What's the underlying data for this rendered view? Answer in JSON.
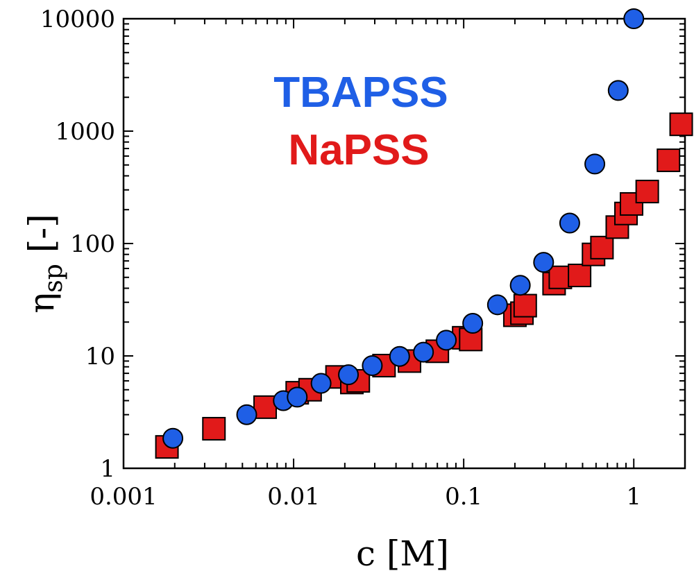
{
  "chart_data": {
    "type": "scatter",
    "xlabel": "c [M]",
    "ylabel_main": "η",
    "ylabel_sub": "sp",
    "ylabel_suffix": " [-]",
    "xscale": "log",
    "yscale": "log",
    "xlim": [
      0.001,
      2.0
    ],
    "ylim": [
      1,
      10000
    ],
    "xticks": [
      {
        "value": 0.001,
        "label": "0.001"
      },
      {
        "value": 0.01,
        "label": "0.01"
      },
      {
        "value": 0.1,
        "label": "0.1"
      },
      {
        "value": 1,
        "label": "1"
      }
    ],
    "yticks": [
      {
        "value": 1,
        "label": "1"
      },
      {
        "value": 10,
        "label": "10"
      },
      {
        "value": 100,
        "label": "100"
      },
      {
        "value": 1000,
        "label": "1000"
      },
      {
        "value": 10000,
        "label": "10000"
      }
    ],
    "legend_placement": "upper-center",
    "series": [
      {
        "name": "TBAPSS",
        "marker": "circle",
        "color": "#1f5fe6",
        "points": [
          [
            0.00195,
            1.85
          ],
          [
            0.0053,
            3.0
          ],
          [
            0.0087,
            4.0
          ],
          [
            0.0105,
            4.3
          ],
          [
            0.0145,
            5.7
          ],
          [
            0.021,
            6.8
          ],
          [
            0.029,
            8.2
          ],
          [
            0.042,
            9.9
          ],
          [
            0.058,
            10.8
          ],
          [
            0.079,
            13.8
          ],
          [
            0.113,
            19.5
          ],
          [
            0.158,
            28.5
          ],
          [
            0.215,
            42.5
          ],
          [
            0.295,
            68
          ],
          [
            0.42,
            152
          ],
          [
            0.59,
            510
          ],
          [
            0.81,
            2300
          ],
          [
            1.0,
            10000
          ]
        ]
      },
      {
        "name": "NaPSS",
        "marker": "square",
        "color": "#e11a1a",
        "points": [
          [
            0.0018,
            1.55
          ],
          [
            0.0034,
            2.25
          ],
          [
            0.0068,
            3.5
          ],
          [
            0.0105,
            4.7
          ],
          [
            0.0125,
            5.0
          ],
          [
            0.018,
            6.5
          ],
          [
            0.022,
            5.8
          ],
          [
            0.024,
            6.0
          ],
          [
            0.034,
            8.2
          ],
          [
            0.048,
            9.0
          ],
          [
            0.07,
            11.0
          ],
          [
            0.1,
            14.5
          ],
          [
            0.11,
            14.0
          ],
          [
            0.2,
            23.0
          ],
          [
            0.22,
            24.0
          ],
          [
            0.23,
            28.0
          ],
          [
            0.34,
            44.0
          ],
          [
            0.37,
            50.0
          ],
          [
            0.48,
            52.0
          ],
          [
            0.58,
            80.0
          ],
          [
            0.65,
            92.0
          ],
          [
            0.8,
            140.0
          ],
          [
            0.9,
            185.0
          ],
          [
            0.97,
            225.0
          ],
          [
            1.2,
            290.0
          ],
          [
            1.6,
            550.0
          ],
          [
            1.9,
            1150.0
          ]
        ]
      }
    ]
  }
}
